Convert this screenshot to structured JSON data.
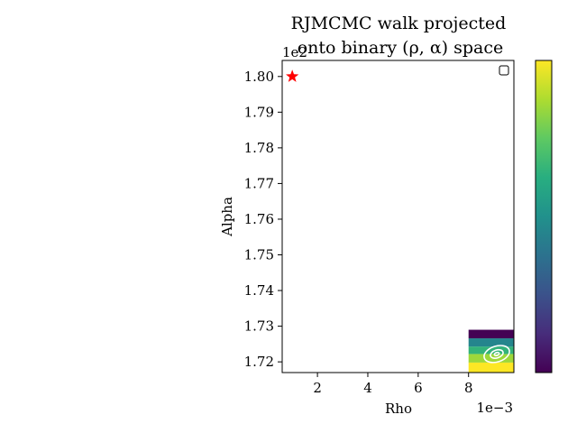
{
  "chart_data": {
    "type": "heatmap",
    "title_lines": [
      "RJMCMC walk projected",
      "onto binary (ρ, α) space"
    ],
    "xlabel": "Rho",
    "ylabel": "Alpha",
    "x_offset_label": "1e−3",
    "y_offset_label": "1e2",
    "xlim": [
      0.0006,
      0.0098
    ],
    "ylim": [
      171.7,
      180.45
    ],
    "xticks": [
      0.002,
      0.004,
      0.006,
      0.008
    ],
    "xtick_labels": [
      "2",
      "4",
      "6",
      "8"
    ],
    "yticks": [
      172.0,
      173.0,
      174.0,
      175.0,
      176.0,
      177.0,
      178.0,
      179.0,
      180.0
    ],
    "ytick_labels": [
      "1.72",
      "1.73",
      "1.74",
      "1.75",
      "1.76",
      "1.77",
      "1.78",
      "1.79",
      "1.80"
    ],
    "grid": false,
    "marker": {
      "type": "star",
      "x": 0.001,
      "y": 180.0,
      "color": "#ff0000"
    },
    "legend": {
      "placement": "top-right",
      "entries": []
    },
    "colormap": "viridis",
    "heatmap_x_range": [
      0.008,
      0.0098
    ],
    "heatmap_rows": [
      {
        "y0": 171.7,
        "y1": 171.98,
        "level": 1.0
      },
      {
        "y0": 171.98,
        "y1": 172.22,
        "level": 0.85
      },
      {
        "y0": 172.22,
        "y1": 172.43,
        "level": 0.65
      },
      {
        "y0": 172.43,
        "y1": 172.66,
        "level": 0.45
      },
      {
        "y0": 172.66,
        "y1": 172.9,
        "level": 0.0
      }
    ],
    "contours": {
      "center": [
        0.00912,
        172.22
      ],
      "color": "#ffffff",
      "radii": [
        {
          "rx": 0.00052,
          "ry": 0.22
        },
        {
          "rx": 0.00026,
          "ry": 0.11
        },
        {
          "rx": 0.0001,
          "ry": 0.04
        }
      ]
    },
    "colorbar": {
      "colormap": "viridis",
      "ticks": []
    }
  }
}
